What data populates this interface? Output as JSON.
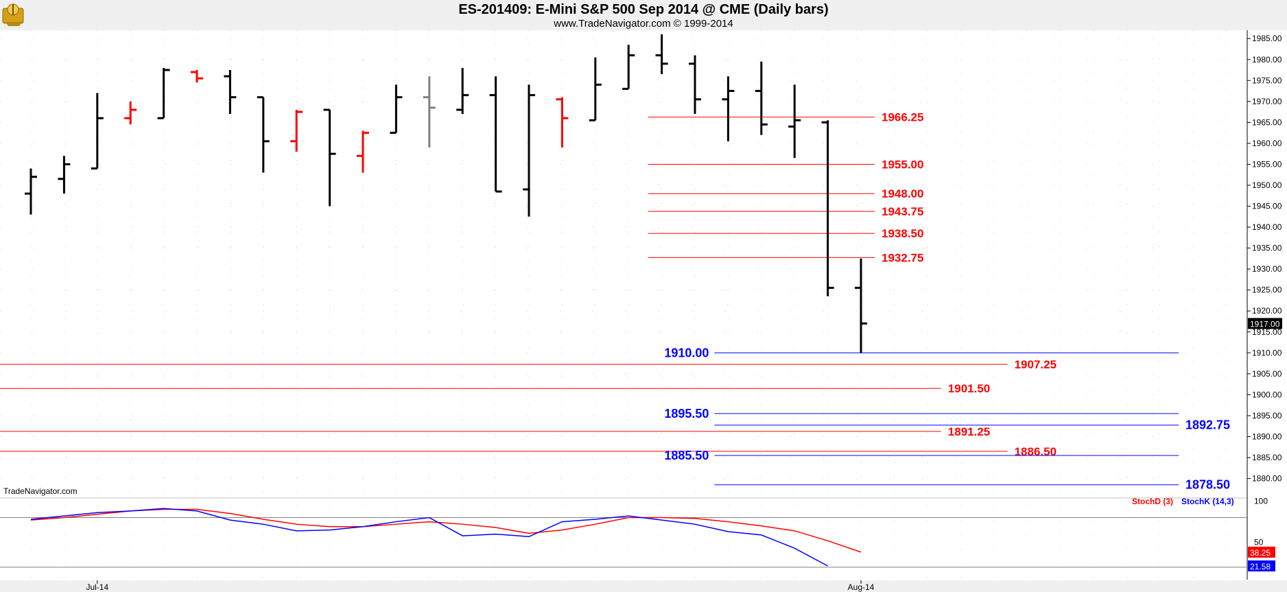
{
  "header": {
    "title": "ES-201409:  E-Mini S&P 500 Sep 2014 @ CME  (Daily bars)",
    "subtitle": "www.TradeNavigator.com © 1999-2014",
    "watermark": "TradeNavigator.com"
  },
  "colors": {
    "up_bar": "#000000",
    "down_bar": "#ff0000",
    "neutral_bar": "#808080",
    "red_level": "#ff0000",
    "blue_level": "#0000ff",
    "stoch_d": "#ff0000",
    "stoch_k": "#0000ff"
  },
  "chart_data": [
    {
      "type": "ohlc",
      "title": "ES-201409:  E-Mini S&P 500 Sep 2014 @ CME  (Daily bars)",
      "y_axis": {
        "ylim": [
          1876,
          1987
        ],
        "ticks": [
          "1985.00",
          "1980.00",
          "1975.00",
          "1970.00",
          "1965.00",
          "1960.00",
          "1955.00",
          "1950.00",
          "1945.00",
          "1940.00",
          "1935.00",
          "1930.00",
          "1925.00",
          "1920.00",
          "1915.00",
          "1910.00",
          "1905.00",
          "1900.00",
          "1895.00",
          "1890.00",
          "1885.00",
          "1880.00"
        ],
        "last_price_label": "1917.00",
        "last_price": 1917.0
      },
      "x_axis": {
        "ticks": [
          {
            "label": "Jul-14",
            "bar_index": 2
          },
          {
            "label": "Aug-14",
            "bar_index": 25
          }
        ]
      },
      "grid": true,
      "bars": [
        {
          "o": 1948,
          "h": 1954,
          "l": 1943,
          "c": 1952,
          "color": "up"
        },
        {
          "o": 1951.5,
          "h": 1957,
          "l": 1948,
          "c": 1955,
          "color": "up"
        },
        {
          "o": 1954,
          "h": 1972,
          "l": 1954,
          "c": 1966,
          "color": "up"
        },
        {
          "o": 1966,
          "h": 1970,
          "l": 1964.5,
          "c": 1968,
          "color": "down"
        },
        {
          "o": 1966,
          "h": 1978,
          "l": 1966,
          "c": 1977.5,
          "color": "up"
        },
        {
          "o": 1977,
          "h": 1977.5,
          "l": 1974.5,
          "c": 1975.5,
          "color": "down"
        },
        {
          "o": 1976,
          "h": 1977.5,
          "l": 1967,
          "c": 1971,
          "color": "up"
        },
        {
          "o": 1971,
          "h": 1971,
          "l": 1953,
          "c": 1960.5,
          "color": "up"
        },
        {
          "o": 1960.5,
          "h": 1968,
          "l": 1958,
          "c": 1967.5,
          "color": "down"
        },
        {
          "o": 1968,
          "h": 1968,
          "l": 1945,
          "c": 1957.5,
          "color": "up"
        },
        {
          "o": 1957,
          "h": 1963,
          "l": 1953,
          "c": 1962.5,
          "color": "down"
        },
        {
          "o": 1962.5,
          "h": 1974,
          "l": 1962.5,
          "c": 1971,
          "color": "up"
        },
        {
          "o": 1971,
          "h": 1976,
          "l": 1959,
          "c": 1968.5,
          "color": "neutral"
        },
        {
          "o": 1968,
          "h": 1978,
          "l": 1967,
          "c": 1971.5,
          "color": "up"
        },
        {
          "o": 1971.5,
          "h": 1976,
          "l": 1948.5,
          "c": 1948.5,
          "color": "up"
        },
        {
          "o": 1949,
          "h": 1974,
          "l": 1942.5,
          "c": 1971.5,
          "color": "up"
        },
        {
          "o": 1970.5,
          "h": 1971,
          "l": 1959,
          "c": 1966,
          "color": "down"
        },
        {
          "o": 1965.5,
          "h": 1980.5,
          "l": 1965.5,
          "c": 1974,
          "color": "up"
        },
        {
          "o": 1973,
          "h": 1983.5,
          "l": 1973,
          "c": 1981,
          "color": "up"
        },
        {
          "o": 1981,
          "h": 1986,
          "l": 1976.5,
          "c": 1979,
          "color": "up"
        },
        {
          "o": 1979,
          "h": 1981,
          "l": 1967,
          "c": 1970.5,
          "color": "up"
        },
        {
          "o": 1970.5,
          "h": 1976,
          "l": 1960.5,
          "c": 1972.5,
          "color": "up"
        },
        {
          "o": 1972.5,
          "h": 1979.5,
          "l": 1962,
          "c": 1964.5,
          "color": "up"
        },
        {
          "o": 1964,
          "h": 1974,
          "l": 1956.5,
          "c": 1965.5,
          "color": "up"
        },
        {
          "o": 1965,
          "h": 1965.5,
          "l": 1923.5,
          "c": 1925.5,
          "color": "up"
        },
        {
          "o": 1925.5,
          "h": 1932.5,
          "l": 1910,
          "c": 1917,
          "color": "up"
        }
      ],
      "levels": [
        {
          "value": 1966.25,
          "label": "1966.25",
          "color": "red",
          "from_bar": 19,
          "to_bar": 25,
          "label_pos": "right"
        },
        {
          "value": 1955.0,
          "label": "1955.00",
          "color": "red",
          "from_bar": 19,
          "to_bar": 25,
          "label_pos": "right"
        },
        {
          "value": 1948.0,
          "label": "1948.00",
          "color": "red",
          "from_bar": 19,
          "to_bar": 25,
          "label_pos": "right"
        },
        {
          "value": 1943.75,
          "label": "1943.75",
          "color": "red",
          "from_bar": 19,
          "to_bar": 25,
          "label_pos": "right"
        },
        {
          "value": 1938.5,
          "label": "1938.50",
          "color": "red",
          "from_bar": 19,
          "to_bar": 25,
          "label_pos": "right"
        },
        {
          "value": 1932.75,
          "label": "1932.75",
          "color": "red",
          "from_bar": 19,
          "to_bar": 25,
          "label_pos": "right"
        },
        {
          "value": 1910.0,
          "label": "1910.00",
          "color": "blue",
          "from_bar": 21,
          "to_bar": 35,
          "label_pos": "left"
        },
        {
          "value": 1907.25,
          "label": "1907.25",
          "color": "red",
          "from_bar": -1,
          "to_bar": 29,
          "label_pos": "right"
        },
        {
          "value": 1901.5,
          "label": "1901.50",
          "color": "red",
          "from_bar": -1,
          "to_bar": 27,
          "label_pos": "right"
        },
        {
          "value": 1895.5,
          "label": "1895.50",
          "color": "blue",
          "from_bar": 21,
          "to_bar": 35,
          "label_pos": "left"
        },
        {
          "value": 1892.75,
          "label": "1892.75",
          "color": "blue",
          "from_bar": 21,
          "to_bar": 35,
          "label_pos": "right"
        },
        {
          "value": 1891.25,
          "label": "1891.25",
          "color": "red",
          "from_bar": -1,
          "to_bar": 27,
          "label_pos": "right"
        },
        {
          "value": 1886.5,
          "label": "1886.50",
          "color": "red",
          "from_bar": -1,
          "to_bar": 29,
          "label_pos": "right"
        },
        {
          "value": 1885.5,
          "label": "1885.50",
          "color": "blue",
          "from_bar": 21,
          "to_bar": 35,
          "label_pos": "left"
        },
        {
          "value": 1878.5,
          "label": "1878.50",
          "color": "blue",
          "from_bar": 21,
          "to_bar": 35,
          "label_pos": "right"
        }
      ]
    },
    {
      "type": "line",
      "legend": [
        "StochD (3)",
        "StochK (14,3)"
      ],
      "y_axis": {
        "ylim": [
          5,
          102
        ],
        "ticks": [
          "100",
          "50"
        ],
        "reference_lines": [
          80,
          20
        ]
      },
      "value_labels": [
        {
          "label": "38.25",
          "color": "red",
          "value": 38.25
        },
        {
          "label": "21.58",
          "color": "blue",
          "value": 21.58
        }
      ],
      "series": [
        {
          "name": "StochD (3)",
          "color": "red",
          "values": [
            77,
            80,
            84,
            88,
            90,
            90,
            85,
            78,
            72,
            69,
            69,
            72,
            75,
            72,
            68,
            61,
            65,
            72,
            80,
            80,
            79,
            75,
            70,
            64,
            52,
            38.25
          ]
        },
        {
          "name": "StochK (14,3)",
          "color": "blue",
          "values": [
            78,
            82,
            86,
            88,
            91,
            88,
            77,
            72,
            64,
            65,
            69,
            75,
            80,
            58,
            60,
            57,
            75,
            78,
            82,
            77,
            72,
            63,
            59,
            43,
            21.58,
            null
          ]
        }
      ]
    }
  ]
}
